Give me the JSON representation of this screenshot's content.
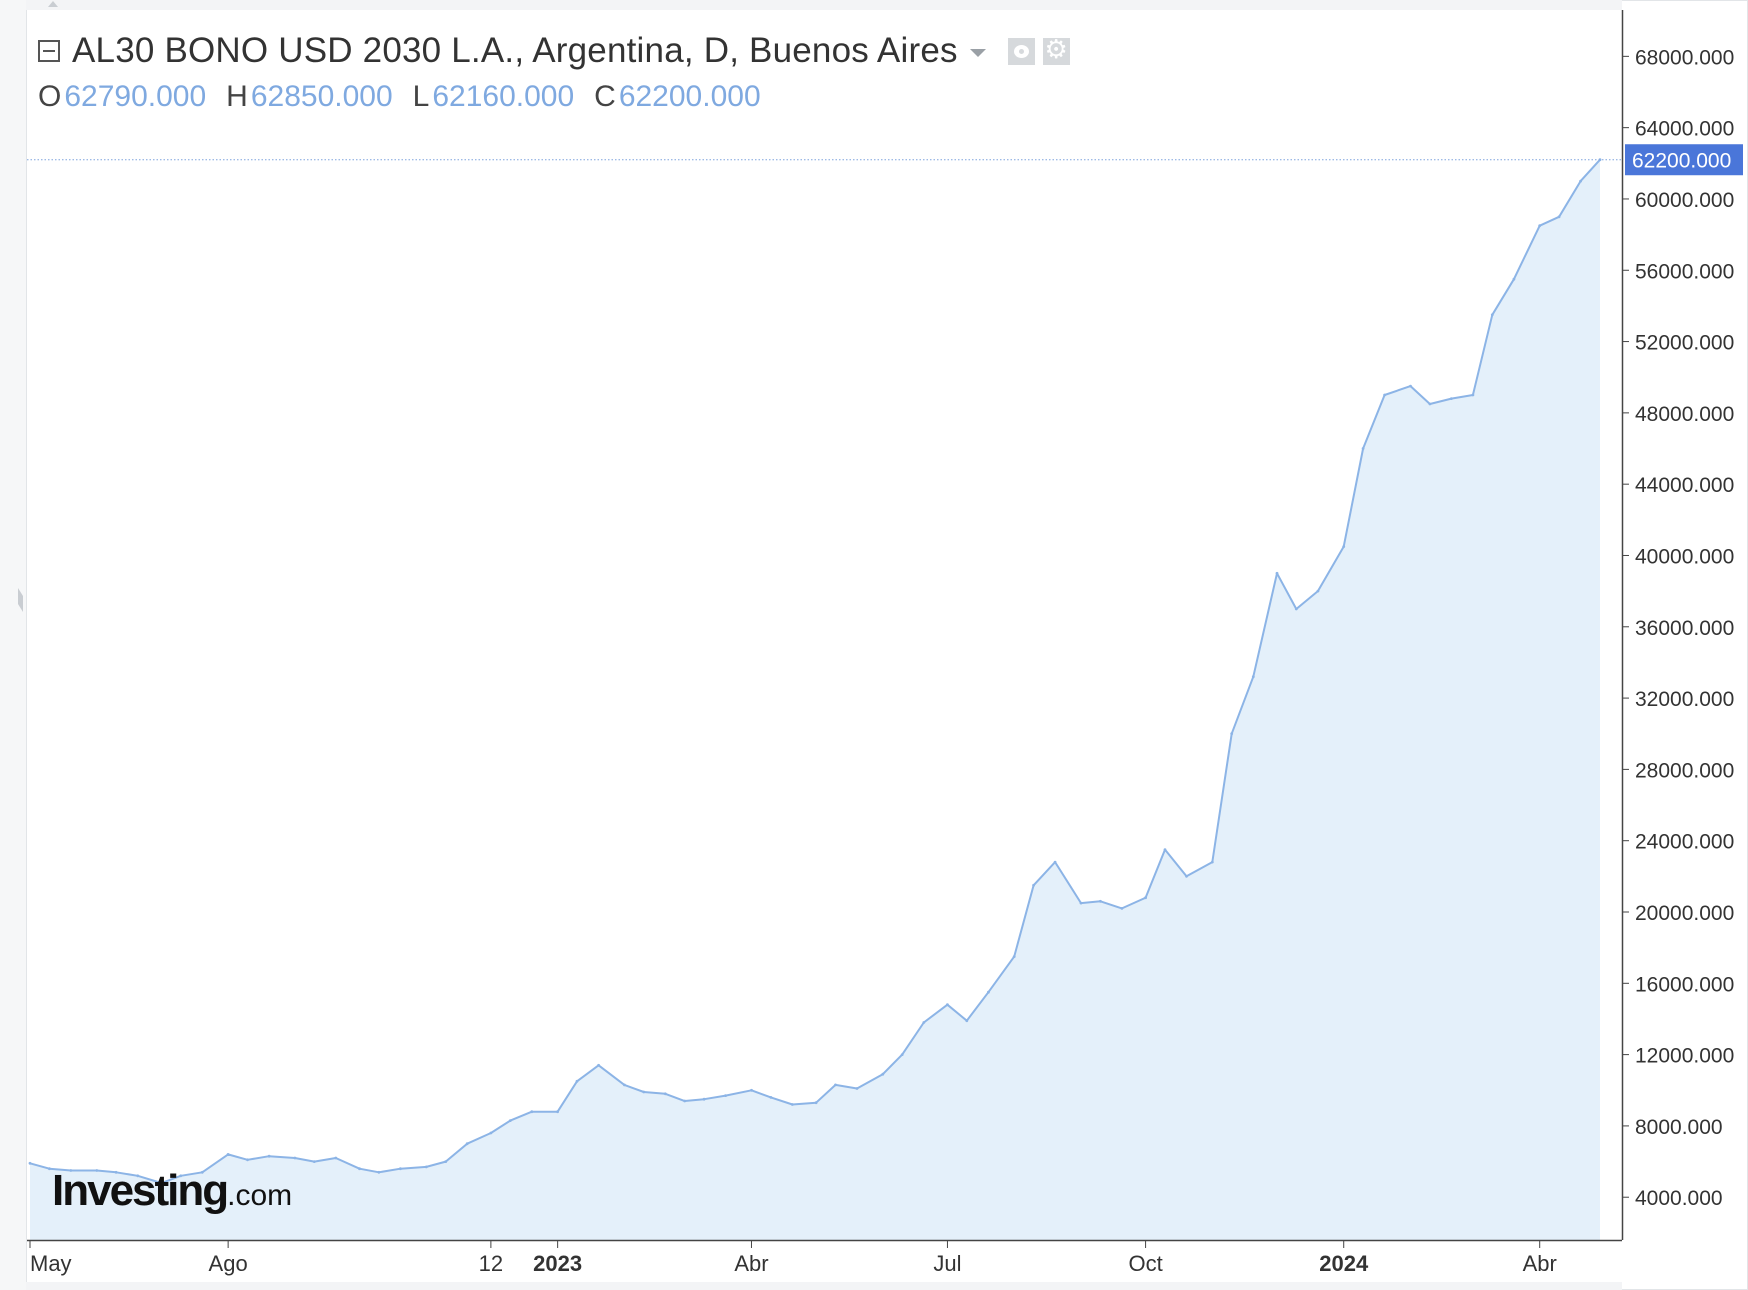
{
  "legend": {
    "title": "AL30 BONO USD 2030 L.A., Argentina, D, Buenos Aires",
    "ohlc": [
      {
        "key": "O",
        "value": "62790.000"
      },
      {
        "key": "H",
        "value": "62850.000"
      },
      {
        "key": "L",
        "value": "62160.000"
      },
      {
        "key": "C",
        "value": "62200.000"
      }
    ]
  },
  "watermark": "Investing.com",
  "colors": {
    "line": "#8cb4e6",
    "area": "#e4f0fa",
    "price_tag": "#4a76d9",
    "axis": "#444444"
  },
  "chart_data": {
    "type": "area",
    "x": [
      "2022-05-01",
      "2022-05-10",
      "2022-05-20",
      "2022-06-01",
      "2022-06-10",
      "2022-06-20",
      "2022-07-01",
      "2022-07-10",
      "2022-07-20",
      "2022-08-01",
      "2022-08-10",
      "2022-08-20",
      "2022-09-01",
      "2022-09-10",
      "2022-09-20",
      "2022-10-01",
      "2022-10-10",
      "2022-10-20",
      "2022-11-01",
      "2022-11-10",
      "2022-11-20",
      "2022-12-01",
      "2022-12-10",
      "2022-12-20",
      "2023-01-01",
      "2023-01-10",
      "2023-01-20",
      "2023-02-01",
      "2023-02-10",
      "2023-02-20",
      "2023-03-01",
      "2023-03-10",
      "2023-03-20",
      "2023-04-01",
      "2023-04-10",
      "2023-04-20",
      "2023-05-01",
      "2023-05-10",
      "2023-05-20",
      "2023-06-01",
      "2023-06-10",
      "2023-06-20",
      "2023-07-01",
      "2023-07-10",
      "2023-07-20",
      "2023-08-01",
      "2023-08-10",
      "2023-08-20",
      "2023-09-01",
      "2023-09-10",
      "2023-09-20",
      "2023-10-01",
      "2023-10-10",
      "2023-10-20",
      "2023-11-01",
      "2023-11-10",
      "2023-11-20",
      "2023-12-01",
      "2023-12-10",
      "2023-12-20",
      "2024-01-01",
      "2024-01-10",
      "2024-01-20",
      "2024-02-01",
      "2024-02-10",
      "2024-02-20",
      "2024-03-01",
      "2024-03-10",
      "2024-03-20",
      "2024-04-01",
      "2024-04-10",
      "2024-04-20",
      "2024-04-29"
    ],
    "series": [
      {
        "values": [
          5900,
          5600,
          5500,
          5500,
          5400,
          5200,
          4800,
          5200,
          5400,
          6400,
          6100,
          6300,
          6200,
          6000,
          6200,
          5600,
          5400,
          5600,
          5700,
          6000,
          7000,
          7600,
          8300,
          8800,
          8800,
          10500,
          11400,
          10300,
          9900,
          9800,
          9400,
          9500,
          9700,
          10000,
          9600,
          9200,
          9300,
          10300,
          10100,
          10900,
          12000,
          13800,
          14800,
          13900,
          15500,
          17500,
          21500,
          22800,
          20500,
          20600,
          20200,
          20800,
          23500,
          22000,
          22800,
          30000,
          33200,
          39000,
          37000,
          38000,
          40500,
          46000,
          49000,
          49500,
          48500,
          48800,
          49000,
          53500,
          55500,
          58500,
          59000,
          61000,
          62200
        ]
      }
    ],
    "xaxis_ticks": [
      "May",
      "Ago",
      "12",
      "2023",
      "Abr",
      "Jul",
      "Oct",
      "2024",
      "Abr"
    ],
    "yaxis_ticks": [
      "68000.000",
      "64000.000",
      "60000.000",
      "56000.000",
      "52000.000",
      "48000.000",
      "44000.000",
      "40000.000",
      "36000.000",
      "32000.000",
      "28000.000",
      "24000.000",
      "20000.000",
      "16000.000",
      "12000.000",
      "8000.000",
      "4000.000"
    ],
    "ylim": [
      1600,
      70600
    ],
    "last_price": 62200,
    "last_price_label": "62200.000",
    "grid": false,
    "legend_position": "top-left"
  }
}
